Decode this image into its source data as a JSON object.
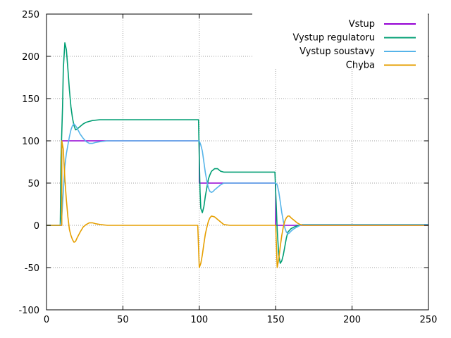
{
  "chart_data": {
    "type": "line",
    "title": "",
    "xlabel": "",
    "ylabel": "",
    "xlim": [
      0,
      250
    ],
    "ylim": [
      -100,
      250
    ],
    "x_ticks": [
      0,
      50,
      100,
      150,
      200,
      250
    ],
    "y_ticks": [
      -100,
      -50,
      0,
      50,
      100,
      150,
      200,
      250
    ],
    "grid": true,
    "legend_position": "top-right",
    "series": [
      {
        "name": "Vstup",
        "color": "#9400d3",
        "points": [
          [
            0,
            0
          ],
          [
            10,
            0
          ],
          [
            10,
            100
          ],
          [
            100,
            100
          ],
          [
            100,
            50
          ],
          [
            150,
            50
          ],
          [
            150,
            0
          ],
          [
            250,
            0
          ]
        ]
      },
      {
        "name": "Vystup regulatoru",
        "color": "#009e73",
        "points": [
          [
            0,
            0
          ],
          [
            9,
            0
          ],
          [
            9.5,
            80
          ],
          [
            10.5,
            140
          ],
          [
            11,
            185
          ],
          [
            12,
            216
          ],
          [
            13,
            208
          ],
          [
            14,
            185
          ],
          [
            15,
            160
          ],
          [
            16,
            140
          ],
          [
            17,
            127
          ],
          [
            18,
            118
          ],
          [
            19,
            113
          ],
          [
            20,
            114
          ],
          [
            22,
            117
          ],
          [
            24,
            120
          ],
          [
            26,
            122
          ],
          [
            28,
            123
          ],
          [
            30,
            124
          ],
          [
            35,
            125
          ],
          [
            40,
            125
          ],
          [
            50,
            125
          ],
          [
            60,
            125
          ],
          [
            70,
            125
          ],
          [
            80,
            125
          ],
          [
            90,
            125
          ],
          [
            99.5,
            125
          ],
          [
            100,
            80
          ],
          [
            100.5,
            40
          ],
          [
            101,
            20
          ],
          [
            102,
            15
          ],
          [
            103,
            22
          ],
          [
            104,
            35
          ],
          [
            105,
            45
          ],
          [
            106,
            55
          ],
          [
            107,
            60
          ],
          [
            108,
            64
          ],
          [
            110,
            67
          ],
          [
            112,
            67
          ],
          [
            114,
            64
          ],
          [
            116,
            63
          ],
          [
            120,
            63
          ],
          [
            130,
            63
          ],
          [
            140,
            63
          ],
          [
            149.5,
            63
          ],
          [
            150,
            40
          ],
          [
            151,
            -5
          ],
          [
            152,
            -35
          ],
          [
            153,
            -45
          ],
          [
            154,
            -42
          ],
          [
            155,
            -35
          ],
          [
            156,
            -25
          ],
          [
            157,
            -15
          ],
          [
            158,
            -8
          ],
          [
            160,
            -4
          ],
          [
            162,
            -2
          ],
          [
            165,
            0
          ],
          [
            168,
            1
          ],
          [
            175,
            1
          ],
          [
            200,
            1
          ],
          [
            250,
            1
          ]
        ]
      },
      {
        "name": "Vystup soustavy",
        "color": "#56b4e9",
        "points": [
          [
            0,
            0
          ],
          [
            9,
            0
          ],
          [
            10,
            10
          ],
          [
            11,
            40
          ],
          [
            12,
            70
          ],
          [
            13,
            85
          ],
          [
            14,
            95
          ],
          [
            15,
            105
          ],
          [
            16,
            113
          ],
          [
            17,
            118
          ],
          [
            18,
            120
          ],
          [
            19,
            118
          ],
          [
            20,
            115
          ],
          [
            22,
            108
          ],
          [
            24,
            103
          ],
          [
            26,
            99
          ],
          [
            28,
            97
          ],
          [
            30,
            97
          ],
          [
            32,
            98
          ],
          [
            35,
            99
          ],
          [
            40,
            100
          ],
          [
            60,
            100
          ],
          [
            80,
            100
          ],
          [
            99,
            100
          ],
          [
            100,
            100
          ],
          [
            101,
            95
          ],
          [
            102,
            88
          ],
          [
            103,
            75
          ],
          [
            104,
            62
          ],
          [
            105,
            52
          ],
          [
            106,
            44
          ],
          [
            107,
            40
          ],
          [
            108,
            39
          ],
          [
            109,
            40
          ],
          [
            110,
            42
          ],
          [
            112,
            45
          ],
          [
            114,
            48
          ],
          [
            116,
            50
          ],
          [
            120,
            50
          ],
          [
            130,
            50
          ],
          [
            140,
            50
          ],
          [
            150,
            50
          ],
          [
            151,
            48
          ],
          [
            152,
            40
          ],
          [
            153,
            28
          ],
          [
            154,
            15
          ],
          [
            155,
            5
          ],
          [
            156,
            -3
          ],
          [
            157,
            -8
          ],
          [
            158,
            -10
          ],
          [
            159,
            -9
          ],
          [
            160,
            -7
          ],
          [
            162,
            -4
          ],
          [
            164,
            -2
          ],
          [
            166,
            0
          ],
          [
            168,
            1
          ],
          [
            175,
            1
          ],
          [
            200,
            1
          ],
          [
            250,
            1
          ]
        ]
      },
      {
        "name": "Chyba",
        "color": "#e69f00",
        "points": [
          [
            0,
            0
          ],
          [
            10,
            0
          ],
          [
            10,
            100
          ],
          [
            11,
            90
          ],
          [
            12,
            55
          ],
          [
            13,
            30
          ],
          [
            14,
            10
          ],
          [
            15,
            -5
          ],
          [
            16,
            -12
          ],
          [
            17,
            -17
          ],
          [
            18,
            -20
          ],
          [
            19,
            -19
          ],
          [
            20,
            -15
          ],
          [
            22,
            -8
          ],
          [
            24,
            -2
          ],
          [
            26,
            1
          ],
          [
            28,
            3
          ],
          [
            30,
            3
          ],
          [
            32,
            2
          ],
          [
            35,
            1
          ],
          [
            40,
            0
          ],
          [
            60,
            0
          ],
          [
            80,
            0
          ],
          [
            99,
            0
          ],
          [
            100,
            -50
          ],
          [
            101,
            -45
          ],
          [
            102,
            -35
          ],
          [
            103,
            -22
          ],
          [
            104,
            -10
          ],
          [
            105,
            -2
          ],
          [
            106,
            5
          ],
          [
            107,
            9
          ],
          [
            108,
            11
          ],
          [
            110,
            10
          ],
          [
            112,
            7
          ],
          [
            114,
            4
          ],
          [
            116,
            1
          ],
          [
            120,
            0
          ],
          [
            130,
            0
          ],
          [
            140,
            0
          ],
          [
            150,
            0
          ],
          [
            151,
            -50
          ],
          [
            152,
            -40
          ],
          [
            153,
            -25
          ],
          [
            154,
            -12
          ],
          [
            155,
            -2
          ],
          [
            156,
            5
          ],
          [
            157,
            9
          ],
          [
            158,
            11
          ],
          [
            159,
            11
          ],
          [
            160,
            9
          ],
          [
            162,
            6
          ],
          [
            164,
            3
          ],
          [
            166,
            1
          ],
          [
            168,
            0
          ],
          [
            175,
            0
          ],
          [
            200,
            0
          ],
          [
            250,
            0
          ]
        ]
      }
    ]
  }
}
